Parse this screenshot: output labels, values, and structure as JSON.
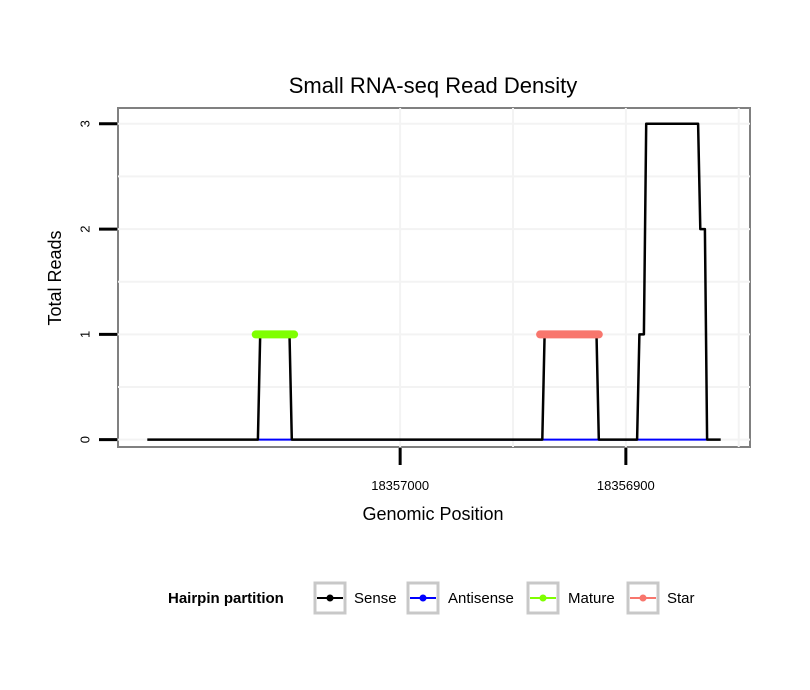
{
  "chart_data": {
    "type": "line",
    "title": "Small RNA-seq Read Density",
    "xlabel": "Genomic Position",
    "ylabel": "Total Reads",
    "x_reversed": true,
    "xlim": [
      18357125,
      18356845
    ],
    "ylim": [
      -0.07,
      3.15
    ],
    "x_ticks": [
      {
        "value": 18357000,
        "label": "18357000"
      },
      {
        "value": 18356900,
        "label": "18356900"
      }
    ],
    "y_ticks": [
      {
        "value": 0,
        "label": "0"
      },
      {
        "value": 1,
        "label": "1"
      },
      {
        "value": 2,
        "label": "2"
      },
      {
        "value": 3,
        "label": "3"
      }
    ],
    "legend": {
      "title": "Hairpin partition",
      "position": "bottom",
      "entries": [
        {
          "name": "Sense",
          "color": "#000000"
        },
        {
          "name": "Antisense",
          "color": "#0000ff"
        },
        {
          "name": "Mature",
          "color": "#7fff00"
        },
        {
          "name": "Star",
          "color": "#f8766d"
        }
      ]
    },
    "series": [
      {
        "name": "Sense",
        "color": "#000000",
        "x": [
          18357112,
          18357063,
          18357062,
          18357049,
          18357048,
          18357000,
          18356937,
          18356936,
          18356913,
          18356912,
          18356895,
          18356894,
          18356892,
          18356891,
          18356886,
          18356868,
          18356867,
          18356865,
          18356864,
          18356862,
          18356858
        ],
        "y": [
          0,
          0,
          1,
          1,
          0,
          0,
          0,
          1,
          1,
          0,
          0,
          1,
          1,
          3,
          3,
          3,
          2,
          2,
          0,
          0,
          0
        ]
      },
      {
        "name": "Antisense",
        "color": "#0000ff",
        "x": [
          18357063,
          18357048,
          18356937,
          18356912,
          18356894,
          18356864
        ],
        "y": [
          0,
          0,
          0,
          0,
          0,
          0
        ]
      },
      {
        "name": "Mature",
        "color": "#7fff00",
        "x": [
          18357064,
          18357047
        ],
        "y": [
          1,
          1
        ]
      },
      {
        "name": "Star",
        "color": "#f8766d",
        "x": [
          18356938,
          18356912
        ],
        "y": [
          1,
          1
        ]
      }
    ]
  }
}
